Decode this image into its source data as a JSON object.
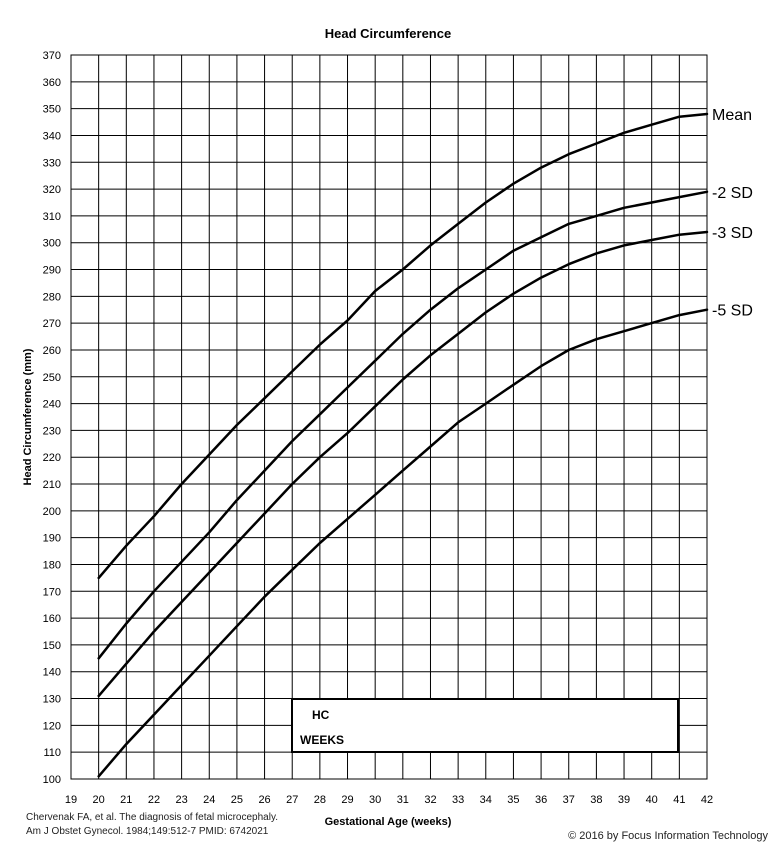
{
  "chart_data": {
    "type": "line",
    "title": "Head Circumference",
    "xlabel": "Gestational Age (weeks)",
    "ylabel": "Head Circumference (mm)",
    "xlim": [
      19,
      42
    ],
    "ylim": [
      100,
      370
    ],
    "x_ticks": [
      19,
      20,
      21,
      22,
      23,
      24,
      25,
      26,
      27,
      28,
      29,
      30,
      31,
      32,
      33,
      34,
      35,
      36,
      37,
      38,
      39,
      40,
      41,
      42
    ],
    "y_ticks": [
      100,
      110,
      120,
      130,
      140,
      150,
      160,
      170,
      180,
      190,
      200,
      210,
      220,
      230,
      240,
      250,
      260,
      270,
      280,
      290,
      300,
      310,
      320,
      330,
      340,
      350,
      360,
      370
    ],
    "grid": true,
    "x": [
      20,
      21,
      22,
      23,
      24,
      25,
      26,
      27,
      28,
      29,
      30,
      31,
      32,
      33,
      34,
      35,
      36,
      37,
      38,
      39,
      40,
      41,
      42
    ],
    "series": [
      {
        "name": "Mean",
        "values": [
          175,
          187,
          198,
          210,
          221,
          232,
          242,
          252,
          262,
          271,
          282,
          290,
          299,
          307,
          315,
          322,
          328,
          333,
          337,
          341,
          344,
          347,
          348
        ]
      },
      {
        "name": "-2 SD",
        "values": [
          145,
          158,
          170,
          181,
          192,
          204,
          215,
          226,
          236,
          246,
          256,
          266,
          275,
          283,
          290,
          297,
          302,
          307,
          310,
          313,
          315,
          317,
          319
        ]
      },
      {
        "name": "-3 SD",
        "values": [
          131,
          143,
          155,
          166,
          177,
          188,
          199,
          210,
          220,
          229,
          239,
          249,
          258,
          266,
          274,
          281,
          287,
          292,
          296,
          299,
          301,
          303,
          304
        ]
      },
      {
        "name": "-5 SD",
        "values": [
          101,
          113,
          124,
          135,
          146,
          157,
          168,
          178,
          188,
          197,
          206,
          215,
          224,
          233,
          240,
          247,
          254,
          260,
          264,
          267,
          270,
          273,
          275
        ]
      }
    ],
    "entry_box": {
      "hc_label": "HC",
      "weeks_label": "WEEKS",
      "hc_value": "",
      "weeks_value": ""
    }
  },
  "footer": {
    "citation_line1": "Chervenak FA, et al. The diagnosis of fetal microcephaly.",
    "citation_line2": "Am J Obstet Gynecol. 1984;149:512-7 PMID: 6742021",
    "copyright": "© 2016 by Focus Information Technology"
  }
}
